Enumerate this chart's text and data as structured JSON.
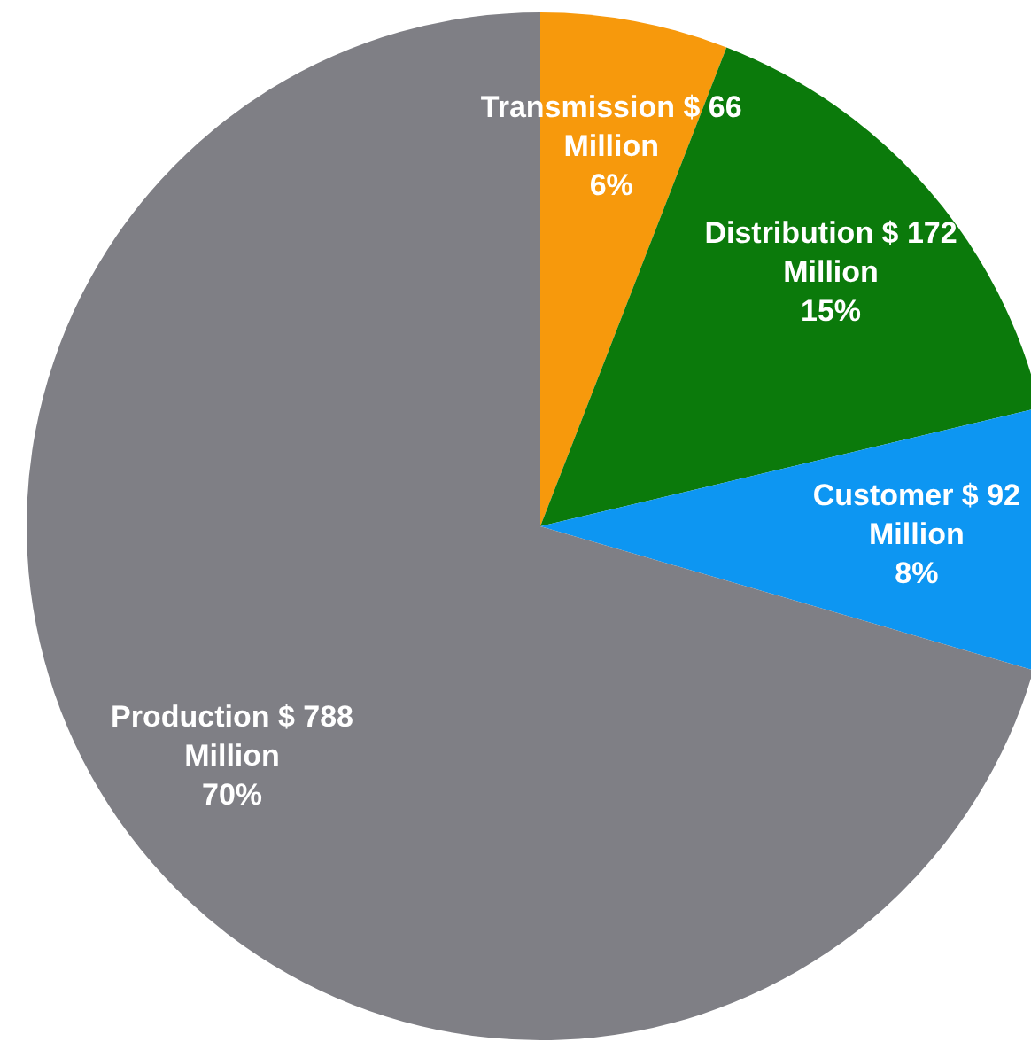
{
  "chart_data": {
    "type": "pie",
    "categories": [
      "Transmission",
      "Distribution",
      "Customer",
      "Production"
    ],
    "values": [
      66,
      172,
      92,
      788
    ],
    "colors": [
      "#f7990c",
      "#0b7a0b",
      "#0d96f2",
      "#7f7f85"
    ],
    "value_labels": [
      "$ 66 Million\n6%",
      "$ 172 Million\n15%",
      "$ 92 Million\n8%",
      "$ 788 Million\n70%"
    ]
  }
}
